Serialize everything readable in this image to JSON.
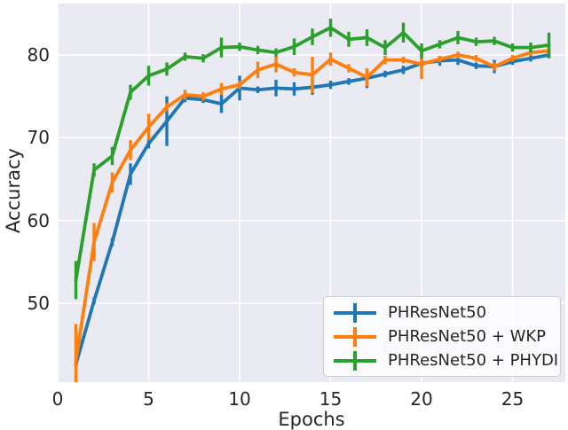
{
  "chart_data": {
    "type": "line",
    "title": "",
    "xlabel": "Epochs",
    "ylabel": "Accuracy",
    "x": [
      1,
      2,
      3,
      4,
      5,
      6,
      7,
      8,
      9,
      10,
      11,
      12,
      13,
      14,
      15,
      16,
      17,
      18,
      19,
      20,
      21,
      22,
      23,
      24,
      25,
      26,
      27
    ],
    "xticks": [
      0,
      5,
      10,
      15,
      20,
      25
    ],
    "yticks": [
      50,
      60,
      70,
      80
    ],
    "xlim": [
      0,
      27.9
    ],
    "ylim": [
      40.5,
      86.2
    ],
    "grid": true,
    "plot_background": "#eaeaf2",
    "grid_color": "#ffffff",
    "text_color": "#262626",
    "legend_position": "lower right",
    "error_bars": true,
    "series": [
      {
        "name": "PHResNet50",
        "color": "#1f77b4",
        "values": [
          42.6,
          50.3,
          57.4,
          65.6,
          69.3,
          72.0,
          74.8,
          74.6,
          74.1,
          76.0,
          75.8,
          76.0,
          75.9,
          76.1,
          76.4,
          76.8,
          77.2,
          77.7,
          78.2,
          79.0,
          79.3,
          79.4,
          78.7,
          78.6,
          79.2,
          79.6,
          80.0
        ],
        "errors": [
          0.3,
          0.4,
          0.5,
          1.3,
          0.6,
          3.0,
          0.5,
          0.4,
          1.1,
          1.5,
          0.4,
          1.0,
          0.8,
          0.9,
          0.5,
          0.4,
          1.2,
          0.4,
          0.5,
          0.5,
          0.6,
          0.6,
          0.4,
          0.8,
          0.4,
          0.4,
          0.4
        ]
      },
      {
        "name": "PHResNet50 + WKP",
        "color": "#ff7f0e",
        "values": [
          43.0,
          57.4,
          64.6,
          68.5,
          71.3,
          73.7,
          75.2,
          75.0,
          75.9,
          76.4,
          78.2,
          78.9,
          77.9,
          77.6,
          79.5,
          78.4,
          77.3,
          79.4,
          79.4,
          78.9,
          79.5,
          80.0,
          79.6,
          78.6,
          79.6,
          80.3,
          80.5
        ],
        "errors": [
          4.5,
          2.3,
          1.2,
          1.2,
          1.6,
          0.5,
          0.6,
          0.5,
          0.7,
          0.5,
          1.0,
          1.0,
          0.5,
          2.2,
          0.8,
          0.5,
          1.1,
          0.5,
          0.4,
          1.8,
          0.4,
          0.4,
          0.4,
          0.5,
          0.4,
          0.4,
          0.5
        ]
      },
      {
        "name": "PHResNet50 + PHYDI",
        "color": "#2ca02c",
        "values": [
          52.8,
          66.1,
          67.8,
          75.5,
          77.5,
          78.3,
          79.8,
          79.6,
          80.9,
          81.0,
          80.6,
          80.3,
          81.0,
          82.2,
          83.3,
          81.9,
          82.1,
          80.9,
          82.7,
          80.5,
          81.3,
          82.1,
          81.6,
          81.7,
          80.9,
          80.9,
          81.2
        ],
        "errors": [
          2.3,
          0.8,
          1.1,
          0.9,
          1.2,
          0.8,
          0.5,
          0.5,
          1.2,
          0.5,
          0.5,
          0.5,
          1.0,
          1.0,
          1.1,
          0.9,
          1.0,
          0.9,
          1.2,
          0.9,
          0.5,
          0.8,
          0.5,
          0.5,
          0.5,
          0.6,
          1.5
        ]
      }
    ]
  }
}
